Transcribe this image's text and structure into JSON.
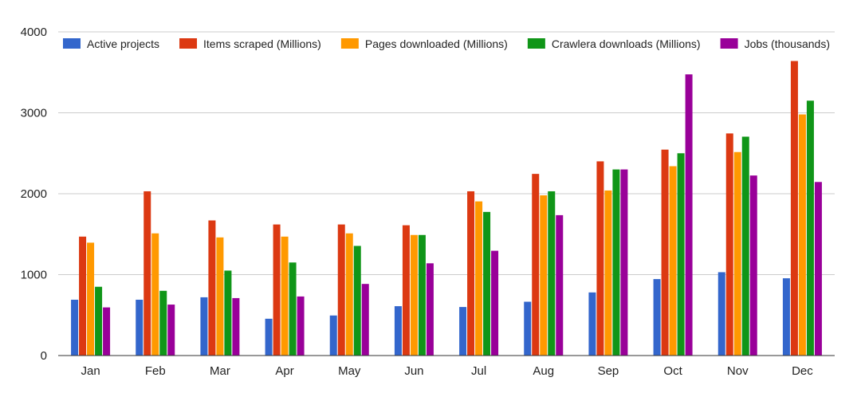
{
  "chart_data": {
    "type": "bar",
    "categories": [
      "Jan",
      "Feb",
      "Mar",
      "Apr",
      "May",
      "Jun",
      "Jul",
      "Aug",
      "Sep",
      "Oct",
      "Nov",
      "Dec"
    ],
    "series": [
      {
        "name": "Active projects",
        "color": "#3366cc",
        "values": [
          690,
          690,
          720,
          455,
          495,
          610,
          600,
          665,
          780,
          945,
          1030,
          955
        ]
      },
      {
        "name": "Items scraped (Millions)",
        "color": "#dc3912",
        "values": [
          1470,
          2030,
          1670,
          1620,
          1620,
          1610,
          2030,
          2245,
          2400,
          2545,
          2745,
          3640
        ]
      },
      {
        "name": "Pages downloaded (Millions)",
        "color": "#ff9900",
        "values": [
          1395,
          1510,
          1460,
          1470,
          1510,
          1490,
          1905,
          1980,
          2040,
          2340,
          2515,
          2980
        ]
      },
      {
        "name": "Crawlera downloads (Millions)",
        "color": "#109618",
        "values": [
          850,
          800,
          1050,
          1150,
          1355,
          1490,
          1775,
          2030,
          2300,
          2500,
          2705,
          3150
        ]
      },
      {
        "name": "Jobs (thousands)",
        "color": "#990099",
        "values": [
          595,
          630,
          710,
          730,
          885,
          1140,
          1295,
          1735,
          2300,
          3475,
          2225,
          2145
        ]
      }
    ],
    "yticks": [
      "0",
      "1000",
      "2000",
      "3000",
      "4000"
    ],
    "ylim": [
      0,
      4000
    ],
    "grid": true,
    "legend_position": "top",
    "title": "",
    "xlabel": "",
    "ylabel": ""
  }
}
